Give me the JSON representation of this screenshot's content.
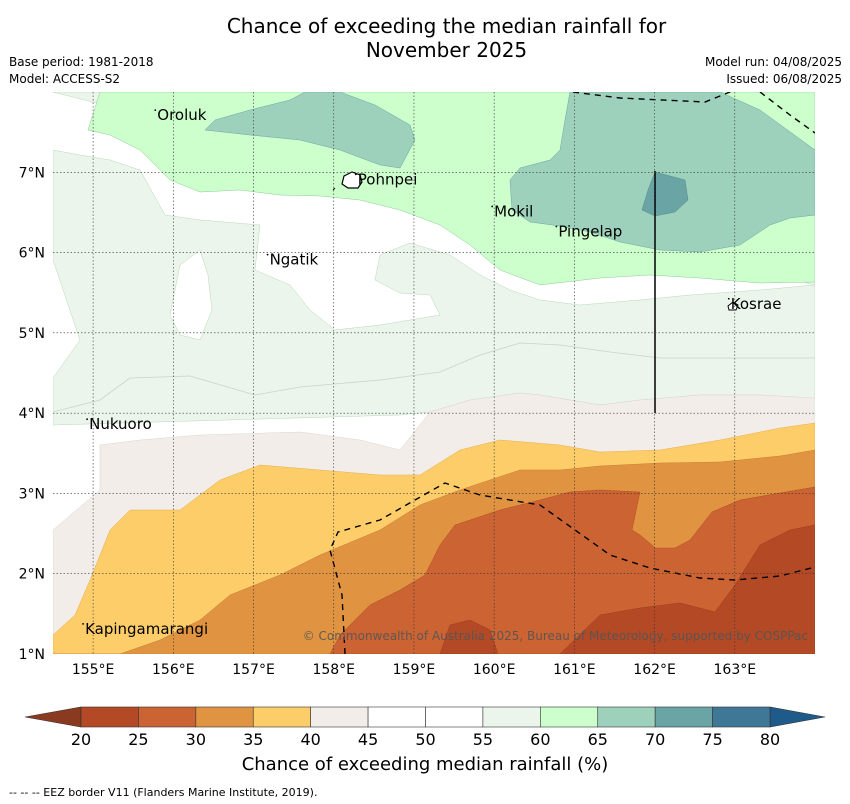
{
  "title_line1": "Chance of exceeding the median rainfall for",
  "title_line2": "November 2025",
  "base_period": "Base period: 1981-2018",
  "model": "Model: ACCESS-S2",
  "model_run": "Model run: 04/08/2025",
  "issued": "Issued: 06/08/2025",
  "copyright": "© Commonwealth of Australia 2025, Bureau of Meteorology, supported by COSPPac",
  "footer": "--  --  -- EEZ border V11 (Flanders Marine Institute, 2019).",
  "map": {
    "lon_range": [
      154.5,
      164.0
    ],
    "lat_range": [
      1.0,
      8.0
    ],
    "lon_ticks": [
      "155°E",
      "156°E",
      "157°E",
      "158°E",
      "159°E",
      "160°E",
      "161°E",
      "162°E",
      "163°E"
    ],
    "lat_ticks": [
      "1°N",
      "2°N",
      "3°N",
      "4°N",
      "5°N",
      "6°N",
      "7°N"
    ],
    "places": [
      {
        "name": "Oroluk",
        "lon": 155.8,
        "lat": 7.65
      },
      {
        "name": "Pohnpei",
        "lon": 158.3,
        "lat": 6.85
      },
      {
        "name": "Mokil",
        "lon": 160.0,
        "lat": 6.45
      },
      {
        "name": "Pingelap",
        "lon": 160.8,
        "lat": 6.2
      },
      {
        "name": "Ngatik",
        "lon": 157.2,
        "lat": 5.85
      },
      {
        "name": "Kosrae",
        "lon": 162.95,
        "lat": 5.3
      },
      {
        "name": "Nukuoro",
        "lon": 154.95,
        "lat": 3.8
      },
      {
        "name": "Kapingamarangi",
        "lon": 154.9,
        "lat": 1.25
      }
    ]
  },
  "colorbar": {
    "label": "Chance of exceeding median rainfall (%)",
    "ticks": [
      "20",
      "25",
      "30",
      "35",
      "40",
      "45",
      "50",
      "55",
      "60",
      "65",
      "70",
      "75",
      "80"
    ],
    "colors": [
      "#b34a25",
      "#cc6333",
      "#e09442",
      "#fdcd69",
      "#f2ede9",
      "#ffffff",
      "#ffffff",
      "#ebf5eb",
      "#ccffcc",
      "#9ed1bb",
      "#6aa4a5",
      "#3f7797"
    ],
    "under_color": "#8a3a1f",
    "over_color": "#1e5a8a"
  }
}
